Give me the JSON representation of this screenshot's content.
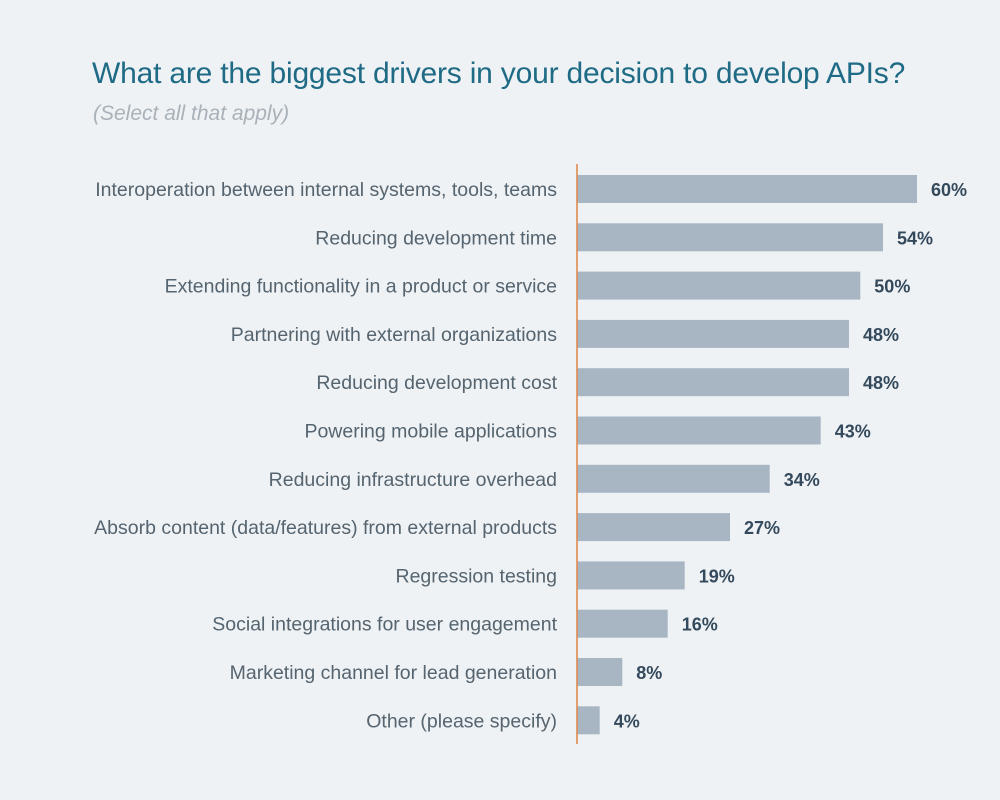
{
  "chart_data": {
    "type": "bar",
    "orientation": "horizontal",
    "title": "What are the biggest drivers in your decision to develop APIs?",
    "subtitle": "(Select all that apply)",
    "categories": [
      "Interoperation between internal systems, tools, teams",
      "Reducing development time",
      "Extending functionality in a product or service",
      "Partnering with external organizations",
      "Reducing development cost",
      "Powering mobile applications",
      "Reducing infrastructure overhead",
      "Absorb content (data/features) from external products",
      "Regression testing",
      "Social integrations for user engagement",
      "Marketing channel for lead generation",
      "Other (please specify)"
    ],
    "values": [
      60,
      54,
      50,
      48,
      48,
      43,
      34,
      27,
      19,
      16,
      8,
      4
    ],
    "value_labels": [
      "60%",
      "54%",
      "50%",
      "48%",
      "48%",
      "43%",
      "34%",
      "27%",
      "19%",
      "16%",
      "8%",
      "4%"
    ],
    "unit": "%",
    "xlim": [
      0,
      60
    ],
    "grid": false,
    "legend": "none"
  },
  "colors": {
    "background": "#eef2f5",
    "title": "#1f6a84",
    "subtitle": "#a9b1b9",
    "bar": "#a8b6c4",
    "axis_line": "#e08a4e",
    "category_text": "#55646f",
    "value_text": "#344a5c"
  }
}
